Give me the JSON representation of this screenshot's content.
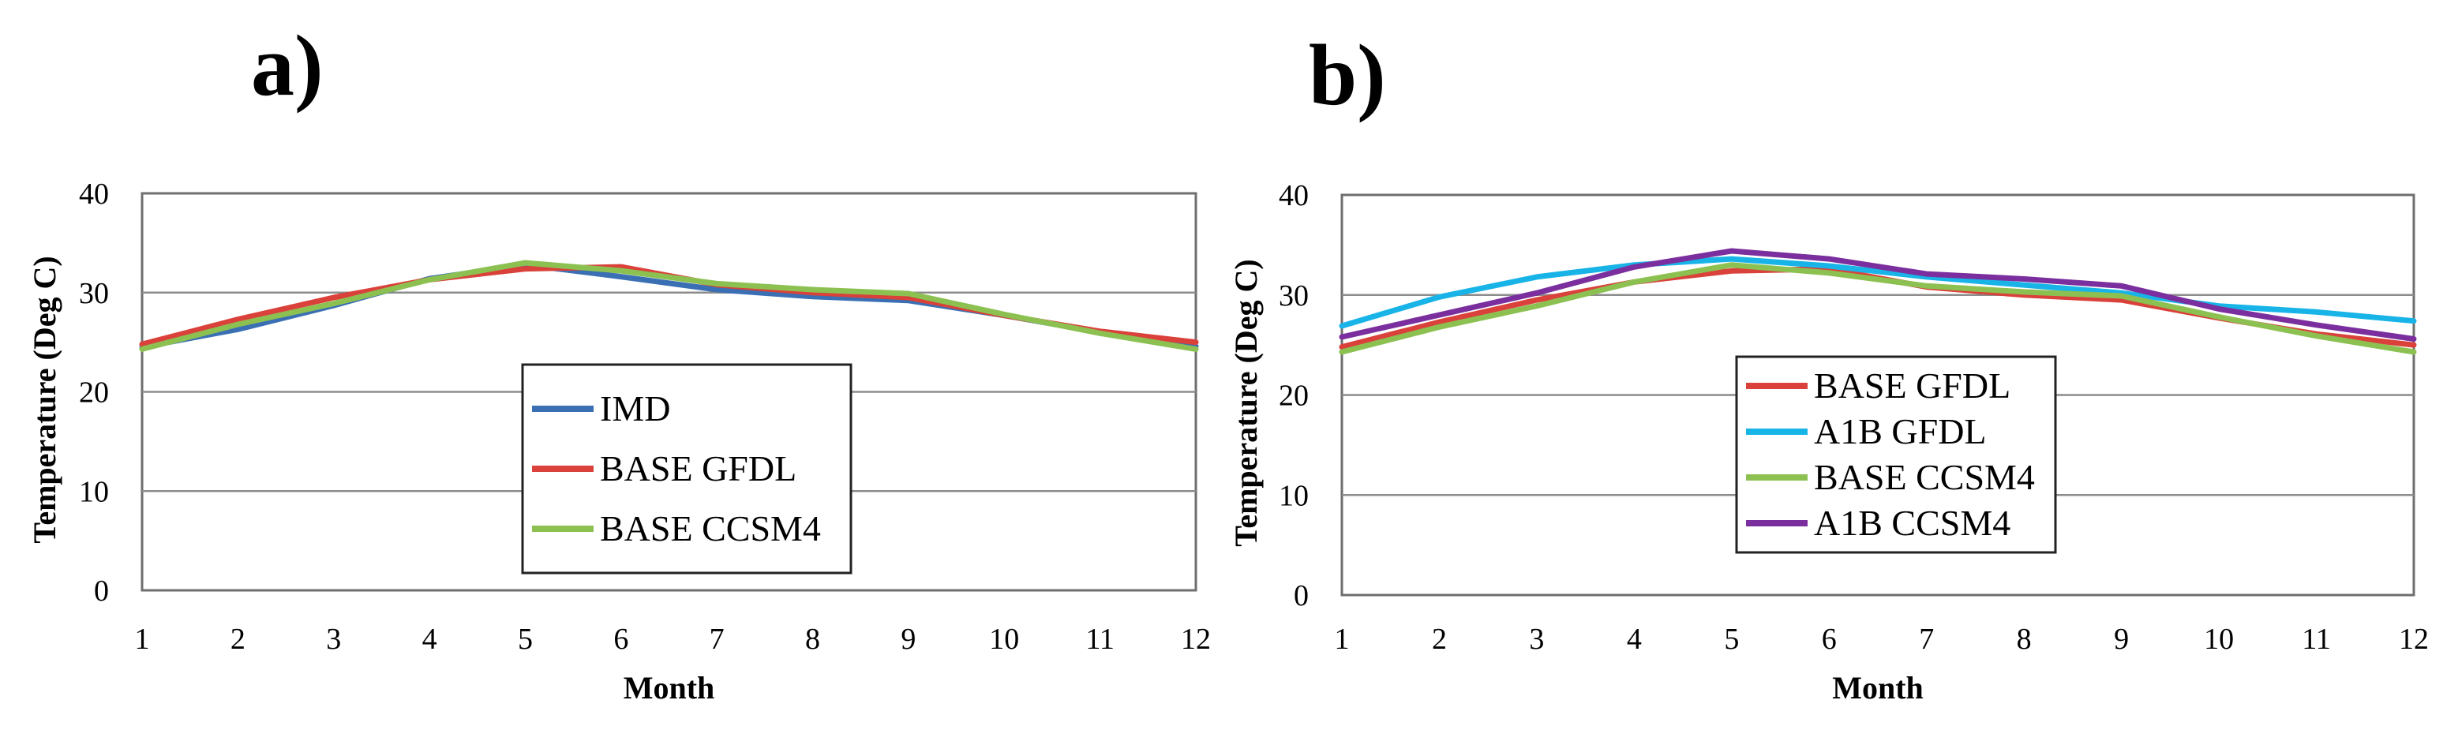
{
  "chart_data": [
    {
      "type": "line",
      "panel_label": "a)",
      "xlabel": "Month",
      "ylabel": "Temperature (Deg C)",
      "x": [
        1,
        2,
        3,
        4,
        5,
        6,
        7,
        8,
        9,
        10,
        11,
        12
      ],
      "x_tick_labels": [
        "1",
        "2",
        "3",
        "4",
        "5",
        "6",
        "7",
        "8",
        "9",
        "10",
        "11",
        "12"
      ],
      "ylim": [
        0,
        40
      ],
      "y_ticks": [
        0,
        10,
        20,
        30,
        40
      ],
      "y_tick_labels": [
        "0",
        "10",
        "20",
        "30",
        "40"
      ],
      "grid": true,
      "legend_position": "center",
      "series": [
        {
          "name": "IMD",
          "color": "#3a6fb3",
          "values": [
            24.5,
            26.3,
            28.7,
            31.4,
            32.8,
            31.6,
            30.3,
            29.6,
            29.2,
            27.7,
            26.0,
            24.6
          ]
        },
        {
          "name": "BASE GFDL",
          "color": "#d9413a",
          "values": [
            24.8,
            27.3,
            29.5,
            31.3,
            32.4,
            32.6,
            30.8,
            30.0,
            29.5,
            27.7,
            26.1,
            25.0
          ]
        },
        {
          "name": "BASE CCSM4",
          "color": "#8cc152",
          "values": [
            24.3,
            26.8,
            28.9,
            31.3,
            33.0,
            32.2,
            30.9,
            30.3,
            29.9,
            27.8,
            25.9,
            24.3
          ]
        }
      ]
    },
    {
      "type": "line",
      "panel_label": "b)",
      "xlabel": "Month",
      "ylabel": "Temperature (Deg C)",
      "x": [
        1,
        2,
        3,
        4,
        5,
        6,
        7,
        8,
        9,
        10,
        11,
        12
      ],
      "x_tick_labels": [
        "1",
        "2",
        "3",
        "4",
        "5",
        "6",
        "7",
        "8",
        "9",
        "10",
        "11",
        "12"
      ],
      "ylim": [
        0,
        40
      ],
      "y_ticks": [
        0,
        10,
        20,
        30,
        40
      ],
      "y_tick_labels": [
        "0",
        "10",
        "20",
        "30",
        "40"
      ],
      "grid": true,
      "legend_position": "center",
      "series": [
        {
          "name": "BASE GFDL",
          "color": "#d9413a",
          "values": [
            24.8,
            27.3,
            29.5,
            31.3,
            32.4,
            32.6,
            30.8,
            30.0,
            29.5,
            27.7,
            26.1,
            25.0
          ]
        },
        {
          "name": "A1B GFDL",
          "color": "#18b4e8",
          "values": [
            26.9,
            29.8,
            31.8,
            33.0,
            33.6,
            32.9,
            31.8,
            31.0,
            30.2,
            28.9,
            28.3,
            27.4
          ]
        },
        {
          "name": "BASE CCSM4",
          "color": "#8cc152",
          "values": [
            24.3,
            26.8,
            28.9,
            31.3,
            33.0,
            32.2,
            30.9,
            30.3,
            29.9,
            27.8,
            25.9,
            24.3
          ]
        },
        {
          "name": "A1B CCSM4",
          "color": "#7b2f9e",
          "values": [
            25.8,
            28.0,
            30.2,
            32.8,
            34.4,
            33.6,
            32.1,
            31.6,
            30.9,
            28.6,
            27.0,
            25.6
          ]
        }
      ]
    }
  ]
}
